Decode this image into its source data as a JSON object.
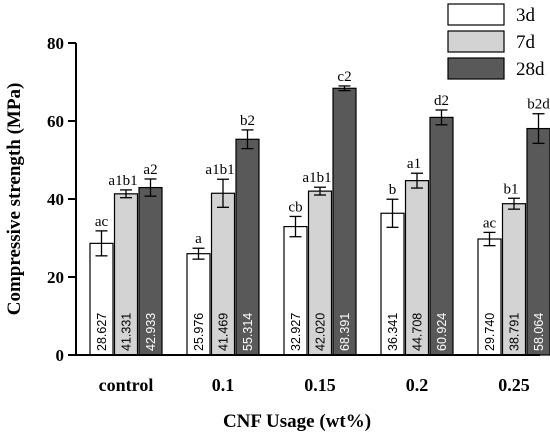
{
  "chart_data": {
    "type": "bar",
    "xlabel": "CNF Usage (wt%)",
    "ylabel": "Compressive strength (MPa)",
    "ylim": [
      0,
      80
    ],
    "yticks": [
      0,
      20,
      40,
      60,
      80
    ],
    "grid": false,
    "legend_position": "top-right",
    "categories": [
      "control",
      "0.1",
      "0.15",
      "0.2",
      "0.25"
    ],
    "series": [
      {
        "name": "3d",
        "color": "#ffffff",
        "values": [
          28.627,
          25.976,
          32.927,
          36.341,
          29.74
        ],
        "value_labels": [
          "28.627",
          "25.976",
          "32.927",
          "36.341",
          "29.740"
        ],
        "errors": [
          3.2,
          1.4,
          2.6,
          3.6,
          1.7
        ],
        "significance": [
          "ac",
          "a",
          "cb",
          "b",
          "ac"
        ]
      },
      {
        "name": "7d",
        "color": "#d3d3d3",
        "values": [
          41.331,
          41.469,
          42.02,
          44.708,
          38.791
        ],
        "value_labels": [
          "41.331",
          "41.469",
          "42.020",
          "44.708",
          "38.791"
        ],
        "errors": [
          1.0,
          3.6,
          1.0,
          1.9,
          1.4
        ],
        "significance": [
          "a1b1",
          "a1b1",
          "a1b1",
          "a1",
          "b1"
        ]
      },
      {
        "name": "28d",
        "color": "#595959",
        "values": [
          42.933,
          55.314,
          68.391,
          60.924,
          58.064
        ],
        "value_labels": [
          "42.933",
          "55.314",
          "68.391",
          "60.924",
          "58.064"
        ],
        "errors": [
          2.2,
          2.4,
          0.6,
          1.9,
          3.8
        ],
        "significance": [
          "a2",
          "b2",
          "c2",
          "d2",
          "b2d"
        ]
      }
    ]
  }
}
